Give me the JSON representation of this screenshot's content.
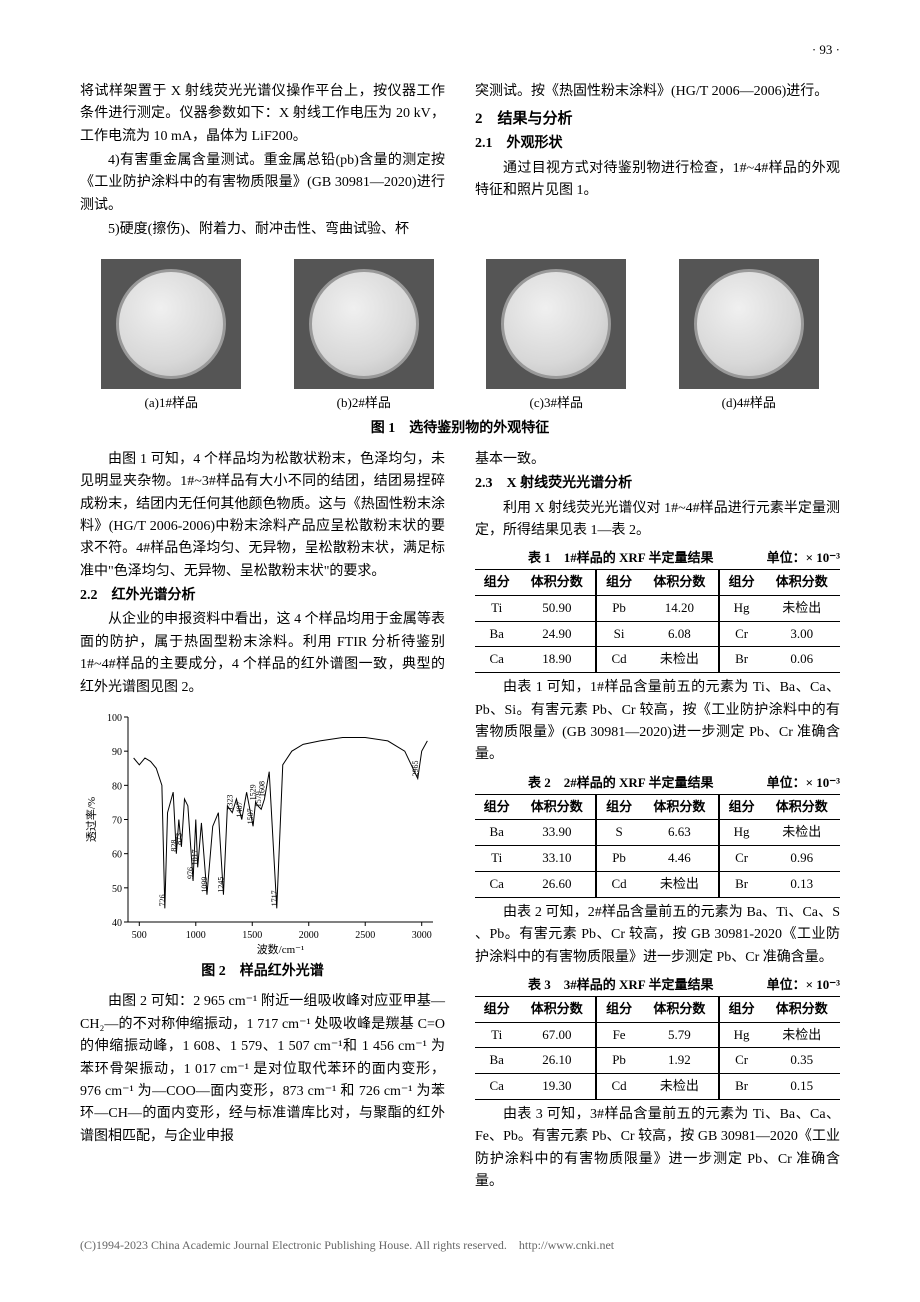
{
  "page_number": "· 93 ·",
  "top_left": {
    "p1": "将试样架置于 X 射线荧光光谱仪操作平台上，按仪器工作条件进行测定。仪器参数如下：X 射线工作电压为 20 kV，工作电流为 10 mA，晶体为 LiF200。",
    "p2": "4)有害重金属含量测试。重金属总铅(pb)含量的测定按《工业防护涂料中的有害物质限量》(GB 30981—2020)进行测试。",
    "p3": "5)硬度(擦伤)、附着力、耐冲击性、弯曲试验、杯"
  },
  "top_right": {
    "p1": "突测试。按《热固性粉末涂料》(HG/T 2006—2006)进行。",
    "h2": "2　结果与分析",
    "h21": "2.1　外观形状",
    "p2": "通过目视方式对待鉴别物进行检查，1#~4#样品的外观特征和照片见图 1。"
  },
  "fig1": {
    "captions": [
      "(a)1#样品",
      "(b)2#样品",
      "(c)3#样品",
      "(d)4#样品"
    ],
    "title": "图 1　选待鉴别物的外观特征",
    "circle_bg": "#4a4a4a"
  },
  "mid_left": {
    "p1": "由图 1 可知，4 个样品均为松散状粉末，色泽均匀，未见明显夹杂物。1#~3#样品有大小不同的结团，结团易捏碎成粉末，结团内无任何其他颜色物质。这与《热固性粉末涂料》(HG/T 2006-2006)中粉末涂料产品应呈松散粉末状的要求不符。4#样品色泽均匀、无异物，呈松散粉末状，满足标准中\"色泽均匀、无异物、呈松散粉末状\"的要求。",
    "h22": "2.2　红外光谱分析",
    "p2": "从企业的申报资料中看出，这 4 个样品均用于金属等表面的防护，属于热固型粉末涂料。利用 FTIR 分析待鉴别 1#~4#样品的主要成分，4 个样品的红外谱图一致，典型的红外光谱图见图 2。"
  },
  "fig2": {
    "title": "图 2　样品红外光谱",
    "ylabel": "透过率/%",
    "xlabel": "波数/cm⁻¹",
    "ylim": [
      40,
      100
    ],
    "xlim": [
      400,
      3100
    ],
    "yticks": [
      40,
      50,
      60,
      70,
      80,
      90,
      100
    ],
    "xticks": [
      500,
      1000,
      1500,
      2000,
      2500,
      3000
    ],
    "line_color": "#000000",
    "label_fontsize": 10,
    "peak_labels": [
      "726",
      "828",
      "873",
      "976",
      "1017",
      "1099",
      "1245",
      "1323",
      "1407",
      "1507",
      "1529",
      "1579",
      "1608",
      "1717",
      "2965"
    ],
    "data": [
      [
        450,
        88
      ],
      [
        500,
        86
      ],
      [
        550,
        88
      ],
      [
        600,
        87
      ],
      [
        650,
        85
      ],
      [
        700,
        80
      ],
      [
        726,
        44
      ],
      [
        750,
        72
      ],
      [
        800,
        78
      ],
      [
        828,
        60
      ],
      [
        850,
        70
      ],
      [
        873,
        62
      ],
      [
        900,
        76
      ],
      [
        930,
        74
      ],
      [
        976,
        52
      ],
      [
        1000,
        70
      ],
      [
        1017,
        56
      ],
      [
        1050,
        69
      ],
      [
        1099,
        48
      ],
      [
        1150,
        68
      ],
      [
        1200,
        72
      ],
      [
        1245,
        48
      ],
      [
        1280,
        74
      ],
      [
        1323,
        72
      ],
      [
        1360,
        76
      ],
      [
        1407,
        70
      ],
      [
        1450,
        78
      ],
      [
        1507,
        68
      ],
      [
        1529,
        75
      ],
      [
        1550,
        74
      ],
      [
        1579,
        73
      ],
      [
        1608,
        76
      ],
      [
        1650,
        84
      ],
      [
        1717,
        44
      ],
      [
        1770,
        86
      ],
      [
        1850,
        90
      ],
      [
        1950,
        92
      ],
      [
        2100,
        93
      ],
      [
        2300,
        94
      ],
      [
        2500,
        94
      ],
      [
        2700,
        93
      ],
      [
        2850,
        90
      ],
      [
        2965,
        82
      ],
      [
        3000,
        90
      ],
      [
        3050,
        93
      ]
    ]
  },
  "mid_left2": {
    "p1": "由图 2 可知：2 965 cm⁻¹ 附近一组吸收峰对应亚甲基—CH₂—的不对称伸缩振动，1 717 cm⁻¹ 处吸收峰是羰基 C=O 的伸缩振动峰，1 608、1 579、1 507 cm⁻¹和 1 456 cm⁻¹ 为苯环骨架振动，1 017 cm⁻¹ 是对位取代苯环的面内变形，976 cm⁻¹ 为—COO—面内变形，873 cm⁻¹ 和 726 cm⁻¹ 为苯环—CH—的面内变形，经与标准谱库比对，与聚酯的红外谱图相匹配，与企业申报"
  },
  "mid_right": {
    "p0": "基本一致。",
    "h23": "2.3　X 射线荧光光谱分析",
    "p1": "利用 X 射线荧光光谱仪对 1#~4#样品进行元素半定量测定，所得结果见表 1—表 2。",
    "t1_caption": "表 1　1#样品的 XRF 半定量结果",
    "unit": "单位：× 10⁻³",
    "headers": [
      "组分",
      "体积分数",
      "组分",
      "体积分数",
      "组分",
      "体积分数"
    ],
    "t1": [
      [
        "Ti",
        "50.90",
        "Pb",
        "14.20",
        "Hg",
        "未检出"
      ],
      [
        "Ba",
        "24.90",
        "Si",
        "6.08",
        "Cr",
        "3.00"
      ],
      [
        "Ca",
        "18.90",
        "Cd",
        "未检出",
        "Br",
        "0.06"
      ]
    ],
    "p2": "由表 1 可知，1#样品含量前五的元素为 Ti、Ba、Ca、Pb、Si。有害元素 Pb、Cr 较高，按《工业防护涂料中的有害物质限量》(GB 30981—2020)进一步测定 Pb、Cr 准确含量。",
    "t2_caption": "表 2　2#样品的 XRF 半定量结果",
    "t2": [
      [
        "Ba",
        "33.90",
        "S",
        "6.63",
        "Hg",
        "未检出"
      ],
      [
        "Ti",
        "33.10",
        "Pb",
        "4.46",
        "Cr",
        "0.96"
      ],
      [
        "Ca",
        "26.60",
        "Cd",
        "未检出",
        "Br",
        "0.13"
      ]
    ],
    "p3": "由表 2 可知，2#样品含量前五的元素为 Ba、Ti、Ca、S 、Pb。有害元素 Pb、Cr 较高，按 GB 30981-2020《工业防护涂料中的有害物质限量》进一步测定 Pb、Cr 准确含量。",
    "t3_caption": "表 3　3#样品的 XRF 半定量结果",
    "t3": [
      [
        "Ti",
        "67.00",
        "Fe",
        "5.79",
        "Hg",
        "未检出"
      ],
      [
        "Ba",
        "26.10",
        "Pb",
        "1.92",
        "Cr",
        "0.35"
      ],
      [
        "Ca",
        "19.30",
        "Cd",
        "未检出",
        "Br",
        "0.15"
      ]
    ],
    "p4": "由表 3 可知，3#样品含量前五的元素为 Ti、Ba、Ca、Fe、Pb。有害元素 Pb、Cr 较高，按 GB 30981—2020《工业防护涂料中的有害物质限量》进一步测定 Pb、Cr 准确含量。"
  },
  "footer": "(C)1994-2023 China Academic Journal Electronic Publishing House. All rights reserved.　http://www.cnki.net"
}
